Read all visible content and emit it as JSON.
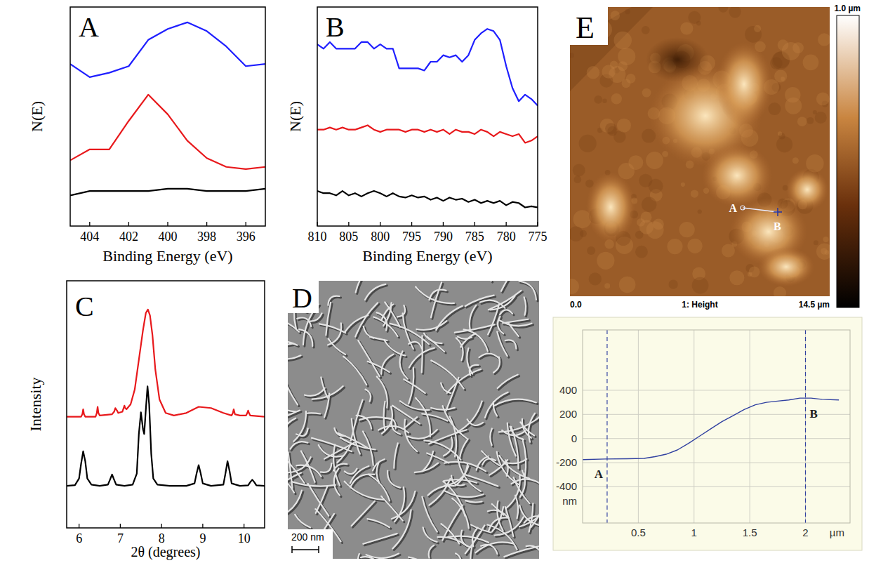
{
  "chart_data": [
    {
      "panel": "A",
      "type": "line",
      "xlabel": "Binding Energy (eV)",
      "ylabel": "N(E)",
      "xlim": [
        405,
        395
      ],
      "xticks": [
        404,
        402,
        400,
        398,
        396
      ],
      "ylim": [
        0,
        100
      ],
      "tick_labels": "x",
      "x": [
        405,
        404,
        403,
        402,
        401,
        400,
        399,
        398,
        397,
        396,
        395
      ],
      "series": [
        {
          "color": "#1f1fff",
          "values": [
            74,
            68,
            70,
            73,
            85,
            90,
            93,
            89,
            82,
            73,
            74
          ]
        },
        {
          "color": "#e8191c",
          "values": [
            30,
            35,
            35,
            48,
            60,
            51,
            39,
            31,
            27,
            26,
            27
          ]
        },
        {
          "color": "#000000",
          "values": [
            14,
            16,
            16,
            16,
            16,
            17,
            17,
            16,
            16,
            16,
            17
          ]
        }
      ]
    },
    {
      "panel": "B",
      "type": "line",
      "xlabel": "Binding Energy (eV)",
      "ylabel": "N(E)",
      "xlim": [
        810,
        775
      ],
      "xticks": [
        810,
        805,
        800,
        795,
        790,
        785,
        780,
        775
      ],
      "ylim": [
        0,
        100
      ],
      "tick_labels": "x",
      "x": [
        810,
        809,
        808,
        807,
        806,
        805,
        804,
        803,
        802,
        801,
        800,
        799,
        798,
        797,
        796,
        795,
        794,
        793,
        792,
        791,
        790,
        789,
        788,
        787,
        786,
        785,
        784,
        783,
        782,
        781,
        780,
        779,
        778,
        777,
        776,
        775
      ],
      "series": [
        {
          "color": "#1f1fff",
          "values": [
            83,
            81,
            84,
            81,
            81,
            81,
            81,
            84,
            84,
            81,
            83,
            81,
            81,
            72,
            72,
            72,
            72,
            71,
            75,
            75,
            78,
            77,
            78,
            75,
            78,
            85,
            88,
            90,
            89,
            85,
            73,
            63,
            57,
            60,
            58,
            55
          ]
        },
        {
          "color": "#e8191c",
          "values": [
            44,
            44,
            45,
            44,
            45,
            44,
            44,
            45,
            46,
            44,
            43,
            44,
            44,
            44,
            43,
            44,
            44,
            43,
            44,
            43,
            44,
            42,
            44,
            43,
            43,
            42,
            44,
            43,
            41,
            43,
            42,
            41,
            42,
            38,
            39,
            41
          ]
        },
        {
          "color": "#000000",
          "values": [
            16,
            15,
            15,
            14,
            16,
            14,
            15,
            13.5,
            15,
            16,
            15,
            13.5,
            15,
            13.5,
            13,
            14,
            13,
            13.5,
            12,
            13,
            11.5,
            13,
            12,
            12.5,
            11,
            12,
            10.5,
            11.5,
            10.5,
            11.5,
            9.5,
            11,
            10.5,
            8.5,
            9,
            8.5
          ]
        }
      ]
    },
    {
      "panel": "C",
      "type": "line",
      "xlabel": "2θ (degrees)",
      "ylabel": "Intensity",
      "xlim": [
        5.7,
        10.5
      ],
      "xticks": [
        6,
        7,
        8,
        9,
        10
      ],
      "ylim": [
        0,
        100
      ],
      "tick_labels": "x",
      "series": [
        {
          "color": "#e8191c",
          "x": [
            5.7,
            6.05,
            6.08,
            6.1,
            6.12,
            6.15,
            6.4,
            6.43,
            6.45,
            6.47,
            6.5,
            6.8,
            6.85,
            6.88,
            6.92,
            6.95,
            7.05,
            7.08,
            7.1,
            7.12,
            7.15,
            7.25,
            7.35,
            7.45,
            7.55,
            7.62,
            7.67,
            7.72,
            7.78,
            7.85,
            7.95,
            8.1,
            8.3,
            8.6,
            8.9,
            9.2,
            9.5,
            9.7,
            9.73,
            9.75,
            9.78,
            9.9,
            10.05,
            10.08,
            10.1,
            10.12,
            10.15,
            10.5
          ],
          "values": [
            45,
            45,
            46,
            48,
            46,
            45,
            45,
            46.5,
            49,
            46.5,
            45.5,
            46,
            47,
            48.5,
            47.5,
            46.5,
            47,
            48.5,
            49.5,
            48.5,
            48,
            50,
            56,
            68,
            80,
            87,
            88.4,
            86,
            78,
            64,
            52,
            46.5,
            45.5,
            46.5,
            49,
            48.5,
            46.5,
            45.5,
            46.5,
            48,
            46,
            45.5,
            45.5,
            46.5,
            47.5,
            46.5,
            45.5,
            45
          ]
        },
        {
          "color": "#000000",
          "x": [
            5.7,
            5.9,
            6.0,
            6.05,
            6.1,
            6.15,
            6.2,
            6.3,
            6.5,
            6.7,
            6.75,
            6.8,
            6.85,
            6.9,
            7.1,
            7.3,
            7.4,
            7.45,
            7.5,
            7.55,
            7.58,
            7.62,
            7.66,
            7.7,
            7.75,
            7.8,
            7.9,
            8.2,
            8.6,
            8.8,
            8.85,
            8.9,
            8.95,
            9.0,
            9.2,
            9.5,
            9.55,
            9.6,
            9.65,
            9.7,
            9.9,
            10.1,
            10.15,
            10.2,
            10.25,
            10.3,
            10.5
          ],
          "values": [
            17,
            17.3,
            20,
            26,
            31,
            27,
            20,
            17.5,
            17,
            17.5,
            19.5,
            21.6,
            19.5,
            17.5,
            17,
            17.5,
            22,
            38,
            46.8,
            40,
            38,
            48,
            57.3,
            50,
            30,
            20,
            17.5,
            17,
            17,
            18,
            22,
            25.4,
            22,
            18,
            17,
            17.5,
            22,
            27,
            23,
            18,
            17,
            17.2,
            18.5,
            19.5,
            18.5,
            17.2,
            17
          ]
        }
      ]
    },
    {
      "type": "line",
      "xlabel": "µm",
      "ylabel": "nm",
      "xlim": [
        0,
        2.4
      ],
      "xticks": [
        0.5,
        1,
        1.5,
        2
      ],
      "ylim": [
        -700,
        900
      ],
      "yticks": [
        400,
        200,
        0,
        -200,
        -400
      ],
      "grid": true,
      "x": [
        0,
        0.2,
        0.4,
        0.55,
        0.65,
        0.75,
        0.85,
        0.95,
        1.05,
        1.15,
        1.25,
        1.35,
        1.45,
        1.55,
        1.65,
        1.75,
        1.85,
        1.95,
        2.05,
        2.15,
        2.3
      ],
      "series": [
        {
          "color": "#3040a0",
          "values": [
            -175,
            -170,
            -168,
            -165,
            -150,
            -130,
            -95,
            -40,
            20,
            80,
            140,
            190,
            240,
            280,
            300,
            310,
            320,
            335,
            335,
            325,
            320
          ]
        }
      ],
      "annotations": [
        {
          "text": "A",
          "x": 0.22,
          "y": -175
        },
        {
          "text": "B",
          "x": 2.0,
          "y": 335
        }
      ]
    }
  ],
  "images": [
    {
      "panel": "D",
      "scale_bar": "200 nm"
    },
    {
      "panel": "E",
      "axis_start": "0.0",
      "channel": "1: Height",
      "axis_end": "14.5 µm",
      "colorbar_max": "1.0 µm",
      "line_ends": [
        "A",
        "B"
      ]
    }
  ]
}
